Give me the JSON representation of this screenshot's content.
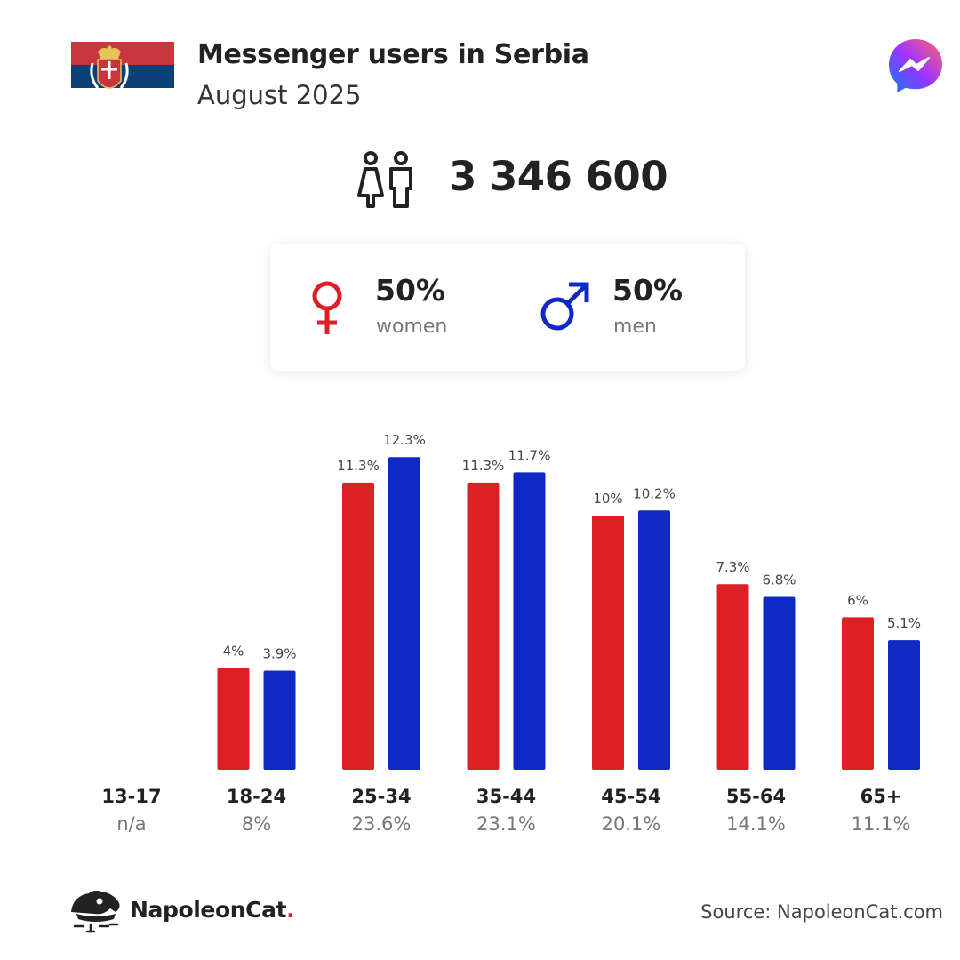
{
  "header": {
    "title": "Messenger users in Serbia",
    "subtitle": "August 2025",
    "total_users": "3 346 600"
  },
  "gender": {
    "women_pct": "50%",
    "women_label": "women",
    "men_pct": "50%",
    "men_label": "men"
  },
  "colors": {
    "women": "#dd1f26",
    "men": "#0f2ac4",
    "flag_red": "#c6363c",
    "flag_blue": "#0c4076",
    "flag_white": "#ffffff"
  },
  "icons": [
    "serbia-flag-icon",
    "messenger-logo-icon",
    "people-icon",
    "female-symbol-icon",
    "male-symbol-icon",
    "napoleoncat-logo-icon"
  ],
  "chart_data": {
    "type": "bar",
    "categories": [
      "13-17",
      "18-24",
      "25-34",
      "35-44",
      "45-54",
      "55-64",
      "65+"
    ],
    "category_totals": [
      "n/a",
      "8%",
      "23.6%",
      "23.1%",
      "20.1%",
      "14.1%",
      "11.1%"
    ],
    "series": [
      {
        "key": "women",
        "values": [
          null,
          4,
          11.3,
          11.3,
          10,
          7.3,
          6
        ],
        "labels": [
          "",
          "4%",
          "11.3%",
          "11.3%",
          "10%",
          "7.3%",
          "6%"
        ]
      },
      {
        "key": "men",
        "values": [
          null,
          3.9,
          12.3,
          11.7,
          10.2,
          6.8,
          5.1
        ],
        "labels": [
          "",
          "3.9%",
          "12.3%",
          "11.7%",
          "10.2%",
          "6.8%",
          "5.1%"
        ]
      }
    ],
    "ylim": [
      0,
      12.3
    ],
    "grid": false,
    "legend": "none"
  },
  "footer": {
    "brand_name": "NapoleonCat",
    "brand_dot": ".",
    "source": "Source: NapoleonCat.com"
  }
}
